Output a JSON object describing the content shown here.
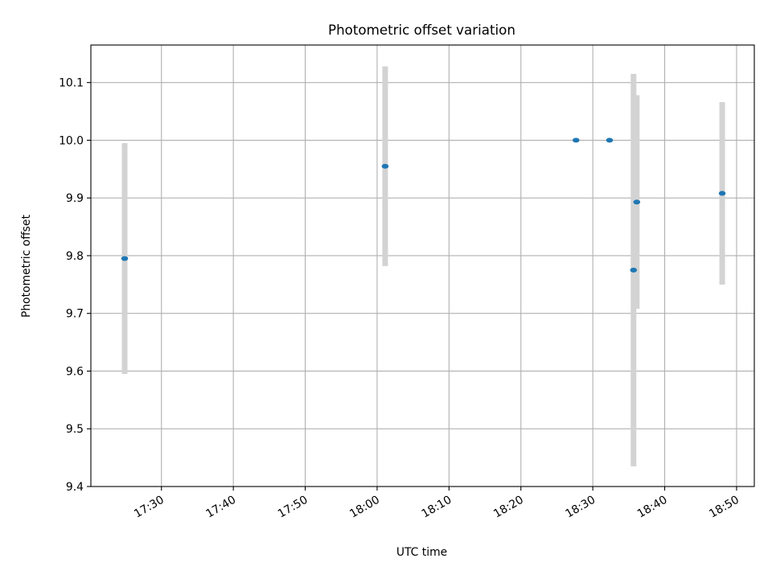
{
  "chart_data": {
    "type": "scatter",
    "title": "Photometric offset variation",
    "xlabel": "UTC time",
    "ylabel": "Photometric offset",
    "x_ticks": [
      "17:30",
      "17:40",
      "17:50",
      "18:00",
      "18:10",
      "18:20",
      "18:30",
      "18:40",
      "18:50"
    ],
    "y_ticks": [
      "9.4",
      "9.5",
      "9.6",
      "9.7",
      "9.8",
      "9.9",
      "10.0",
      "10.1"
    ],
    "xlim": [
      "17:20:11",
      "18:52:28"
    ],
    "ylim": [
      9.4,
      10.165
    ],
    "grid": true,
    "marker_color": "#1f77b4",
    "errorbar_color": "#d3d3d3",
    "points": [
      {
        "x": "17:24:53",
        "y": 9.795,
        "err": 0.2
      },
      {
        "x": "18:01:07",
        "y": 9.955,
        "err": 0.173
      },
      {
        "x": "18:27:40",
        "y": 10.0,
        "err": 0
      },
      {
        "x": "18:32:20",
        "y": 10.0,
        "err": 0
      },
      {
        "x": "18:35:40",
        "y": 9.775,
        "err": 0.34
      },
      {
        "x": "18:36:07",
        "y": 9.893,
        "err": 0.185
      },
      {
        "x": "18:48:00",
        "y": 9.908,
        "err": 0.158
      }
    ]
  }
}
